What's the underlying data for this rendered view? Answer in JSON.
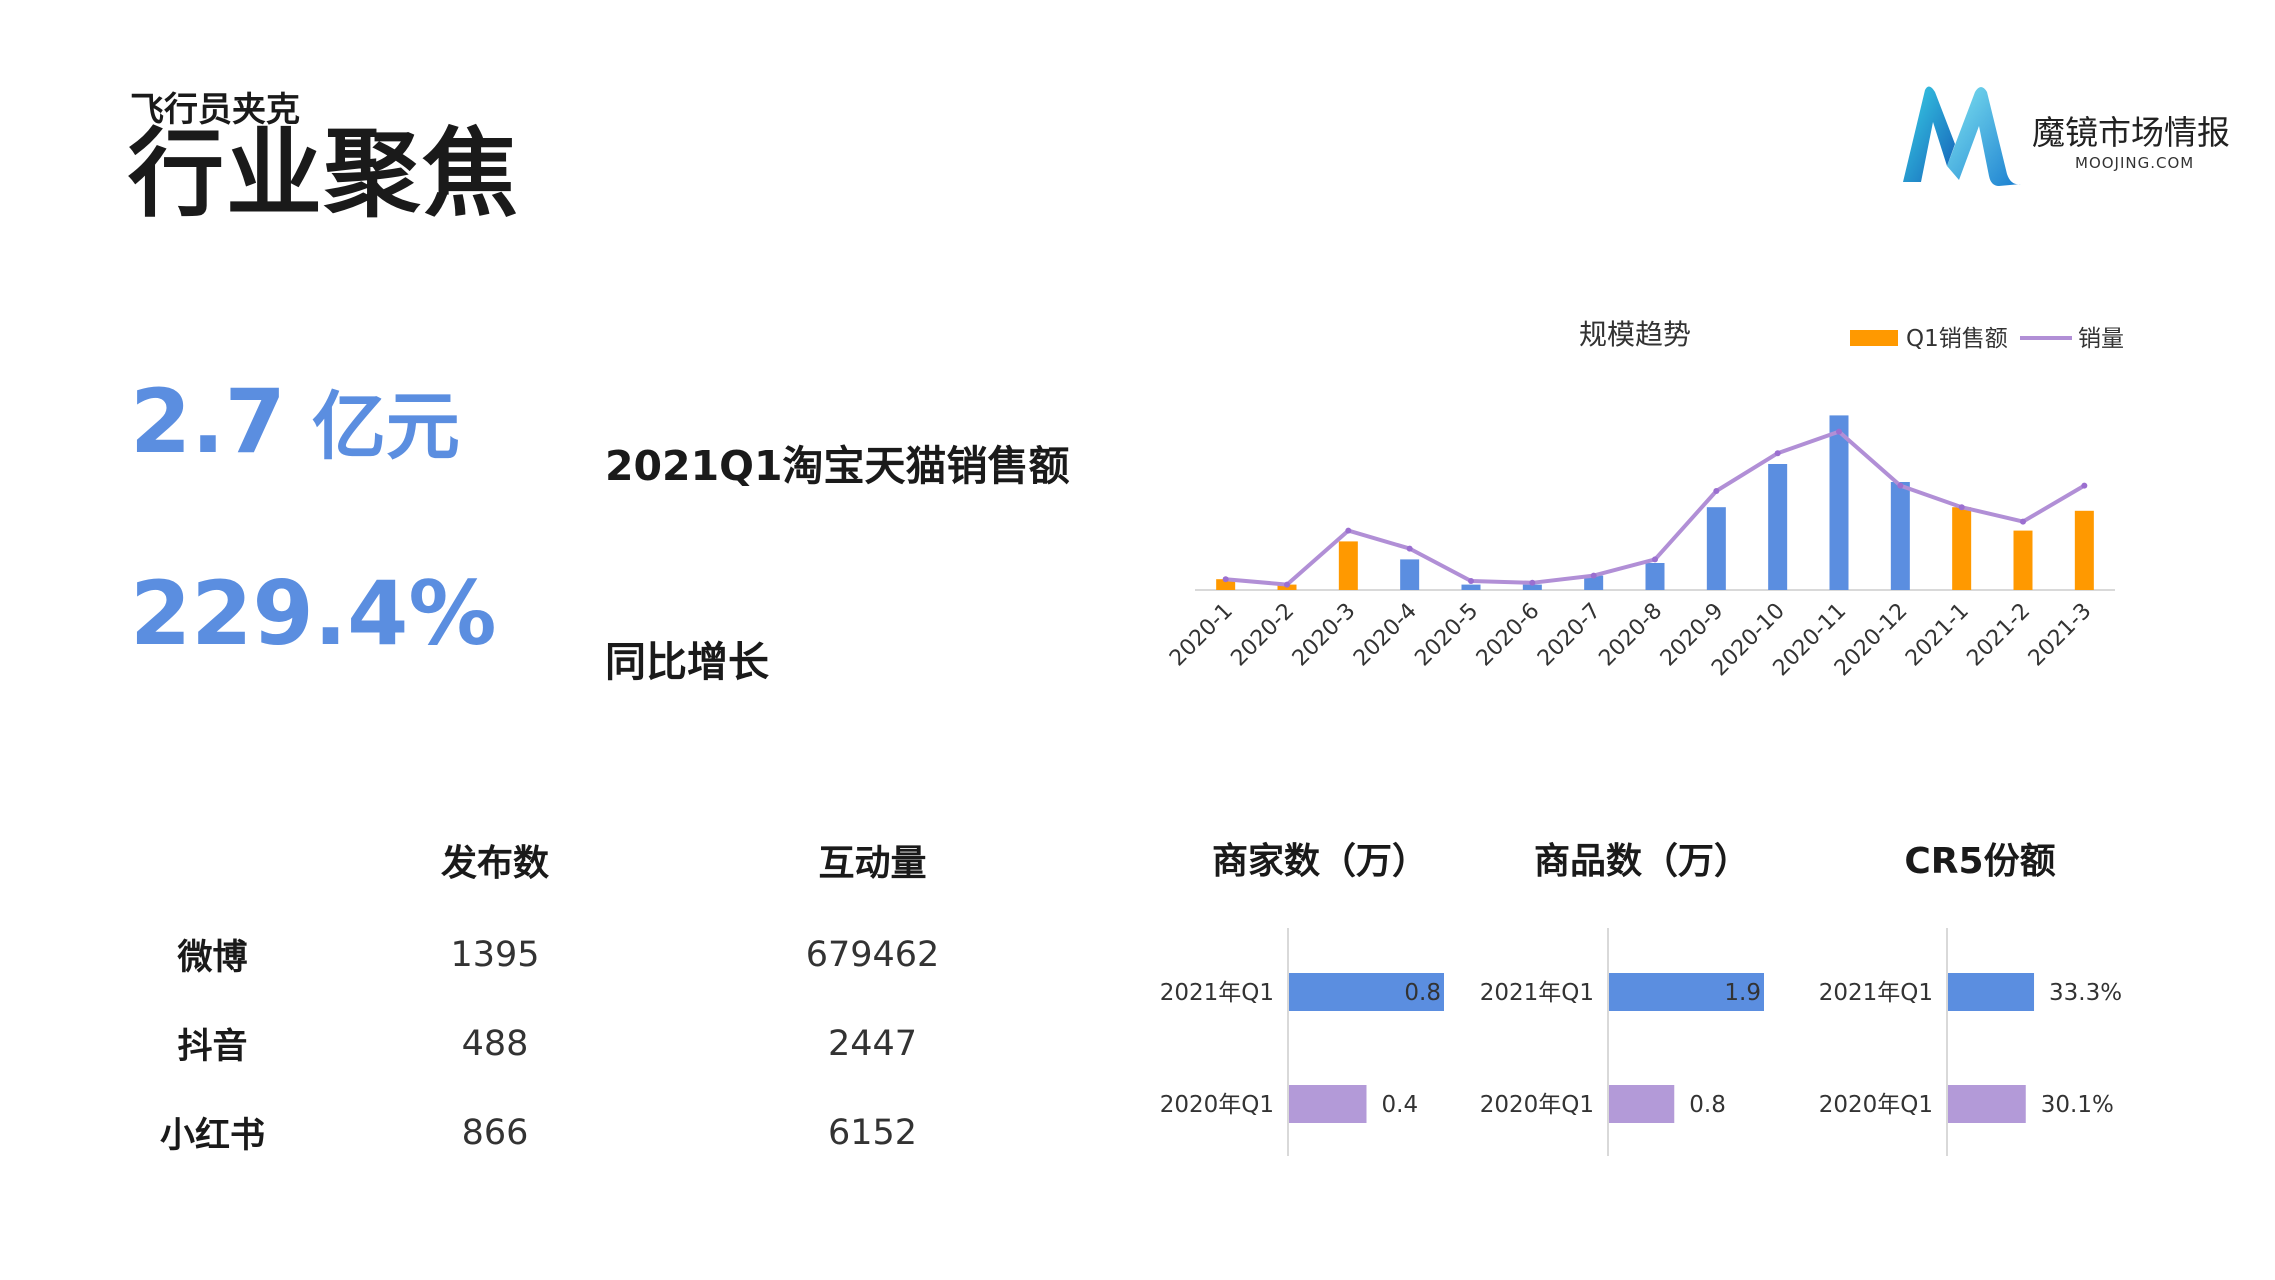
{
  "header": {
    "brand": "飞行员夹克",
    "title": "行业聚焦"
  },
  "logo": {
    "icon": "moojing-m-logo",
    "name": "魔镜市场情报",
    "domain": "MOOJING.COM"
  },
  "kpis": [
    {
      "value": "2.7",
      "unit": "亿元",
      "label": "2021Q1淘宝天猫销售额"
    },
    {
      "value": "229.4%",
      "unit": "",
      "label": "同比增长"
    }
  ],
  "social": {
    "headers": [
      "发布数",
      "互动量"
    ],
    "rows": [
      {
        "platform": "微博",
        "posts": "1395",
        "interactions": "679462"
      },
      {
        "platform": "抖音",
        "posts": "488",
        "interactions": "2447"
      },
      {
        "platform": "小红书",
        "posts": "866",
        "interactions": "6152"
      }
    ]
  },
  "colors": {
    "accent_blue": "#5b8ee0",
    "orange": "#ff9900",
    "purple": "#b39ad8",
    "line_purple": "#b18fd6"
  },
  "chart_data": [
    {
      "type": "bar",
      "title": "规模趋势",
      "categories": [
        "2020-1",
        "2020-2",
        "2020-3",
        "2020-4",
        "2020-5",
        "2020-6",
        "2020-7",
        "2020-8",
        "2020-9",
        "2020-10",
        "2020-11",
        "2020-12",
        "2021-1",
        "2021-2",
        "2021-3"
      ],
      "series": [
        {
          "name": "Q1销售额",
          "type": "bar",
          "values": [
            6,
            3,
            27,
            17,
            3,
            3,
            8,
            15,
            46,
            70,
            97,
            60,
            46,
            33,
            44
          ]
        },
        {
          "name": "销量",
          "type": "line",
          "values": [
            6,
            3,
            33,
            23,
            5,
            4,
            8,
            17,
            55,
            76,
            88,
            58,
            46,
            38,
            58
          ]
        }
      ],
      "bar_highlight": [
        0,
        1,
        2,
        12,
        13,
        14
      ],
      "ylim": [
        0,
        100
      ],
      "legend": "top-right",
      "grid": false
    },
    {
      "type": "bar",
      "orientation": "horizontal",
      "title": "商家数（万）",
      "categories": [
        "2021年Q1",
        "2020年Q1"
      ],
      "values": [
        0.8,
        0.4
      ],
      "labels": [
        "0.8",
        "0.4"
      ],
      "xlim": [
        0,
        0.8
      ]
    },
    {
      "type": "bar",
      "orientation": "horizontal",
      "title": "商品数（万）",
      "categories": [
        "2021年Q1",
        "2020年Q1"
      ],
      "values": [
        1.9,
        0.8
      ],
      "labels": [
        "1.9",
        "0.8"
      ],
      "xlim": [
        0,
        1.9
      ]
    },
    {
      "type": "bar",
      "orientation": "horizontal",
      "title": "CR5份额",
      "categories": [
        "2021年Q1",
        "2020年Q1"
      ],
      "values": [
        33.3,
        30.1
      ],
      "labels": [
        "33.3%",
        "30.1%"
      ],
      "xlim": [
        0,
        60
      ]
    }
  ]
}
